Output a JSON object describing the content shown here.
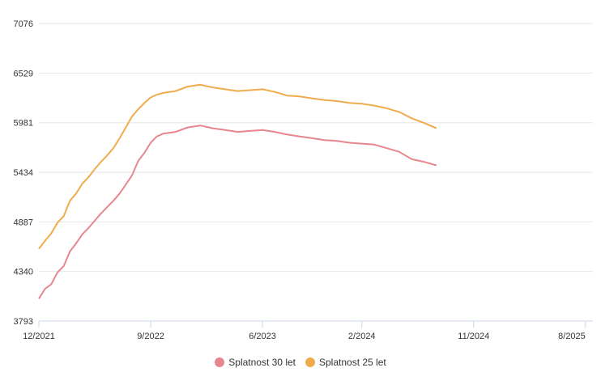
{
  "chart_data": {
    "type": "line",
    "title": "",
    "xlabel": "",
    "ylabel": "",
    "y_ticks": [
      3793,
      4340,
      4887,
      5434,
      5981,
      6529,
      7076
    ],
    "ylim": [
      3793,
      7076
    ],
    "x_ticks": [
      "12/2021",
      "9/2022",
      "6/2023",
      "2/2024",
      "11/2024",
      "8/2025"
    ],
    "xlim": [
      0,
      44.6
    ],
    "x_unit": "months since 12/2021",
    "grid": true,
    "legend_position": "bottom-center",
    "series": [
      {
        "name": "Splatnost 30 let",
        "color": "#e8868f",
        "x": [
          0,
          0.5,
          1,
          1.5,
          2,
          2.5,
          3,
          3.5,
          4,
          4.5,
          5,
          5.5,
          6,
          6.5,
          7,
          7.5,
          8,
          8.5,
          9,
          9.5,
          10,
          11,
          12,
          13,
          14,
          15,
          16,
          17,
          18,
          19,
          20,
          21,
          22,
          23,
          24,
          25,
          26,
          27,
          28,
          29,
          30,
          31,
          32
        ],
        "y": [
          4040,
          4150,
          4200,
          4330,
          4400,
          4560,
          4650,
          4750,
          4820,
          4900,
          4980,
          5050,
          5120,
          5200,
          5300,
          5400,
          5560,
          5650,
          5760,
          5830,
          5860,
          5880,
          5930,
          5950,
          5920,
          5900,
          5880,
          5890,
          5900,
          5880,
          5850,
          5830,
          5810,
          5790,
          5780,
          5760,
          5750,
          5740,
          5700,
          5660,
          5580,
          5550,
          5510
        ]
      },
      {
        "name": "Splatnost 25 let",
        "color": "#f0ac4c",
        "x": [
          0,
          0.5,
          1,
          1.5,
          2,
          2.5,
          3,
          3.5,
          4,
          4.5,
          5,
          5.5,
          6,
          6.5,
          7,
          7.5,
          8,
          8.5,
          9,
          9.5,
          10,
          11,
          12,
          13,
          14,
          15,
          16,
          17,
          18,
          19,
          20,
          21,
          22,
          23,
          24,
          25,
          26,
          27,
          28,
          29,
          30,
          31,
          32
        ],
        "y": [
          4590,
          4680,
          4760,
          4880,
          4950,
          5120,
          5200,
          5310,
          5380,
          5470,
          5550,
          5620,
          5700,
          5810,
          5930,
          6050,
          6130,
          6200,
          6260,
          6290,
          6310,
          6330,
          6380,
          6400,
          6370,
          6350,
          6330,
          6340,
          6350,
          6320,
          6280,
          6270,
          6250,
          6230,
          6220,
          6200,
          6190,
          6170,
          6140,
          6100,
          6030,
          5980,
          5920
        ]
      }
    ]
  }
}
